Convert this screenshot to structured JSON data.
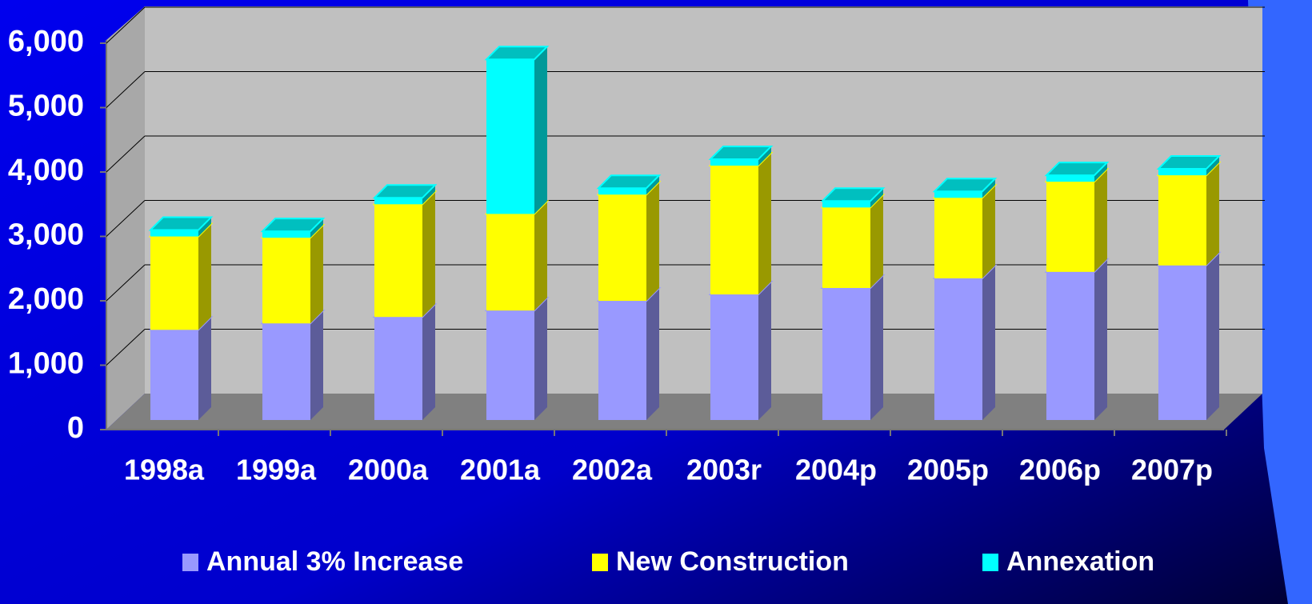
{
  "chart_data": {
    "type": "bar",
    "stacked": true,
    "categories": [
      "1998a",
      "1999a",
      "2000a",
      "2001a",
      "2002a",
      "2003r",
      "2004p",
      "2005p",
      "2006p",
      "2007p"
    ],
    "series": [
      {
        "name": "Annual 3% Increase",
        "color": "#9999ff",
        "values": [
          1400,
          1500,
          1600,
          1700,
          1850,
          1950,
          2050,
          2200,
          2300,
          2400
        ]
      },
      {
        "name": "New Construction",
        "color": "#ffff00",
        "values": [
          1450,
          1330,
          1750,
          1500,
          1650,
          2000,
          1250,
          1250,
          1400,
          1400
        ]
      },
      {
        "name": "Annexation",
        "color": "#00ffff",
        "values": [
          100,
          100,
          100,
          2400,
          100,
          100,
          100,
          100,
          100,
          100
        ]
      }
    ],
    "ylim": [
      0,
      6000
    ],
    "yticks": [
      0,
      {
        "value": 1000,
        "label": "1,000"
      },
      {
        "value": 2000,
        "label": "2,000"
      },
      {
        "value": 3000,
        "label": "3,000"
      },
      {
        "value": 4000,
        "label": "4,000"
      },
      {
        "value": 5000,
        "label": "5,000"
      },
      {
        "value": 6000,
        "label": "6,000"
      }
    ],
    "grid": true
  }
}
